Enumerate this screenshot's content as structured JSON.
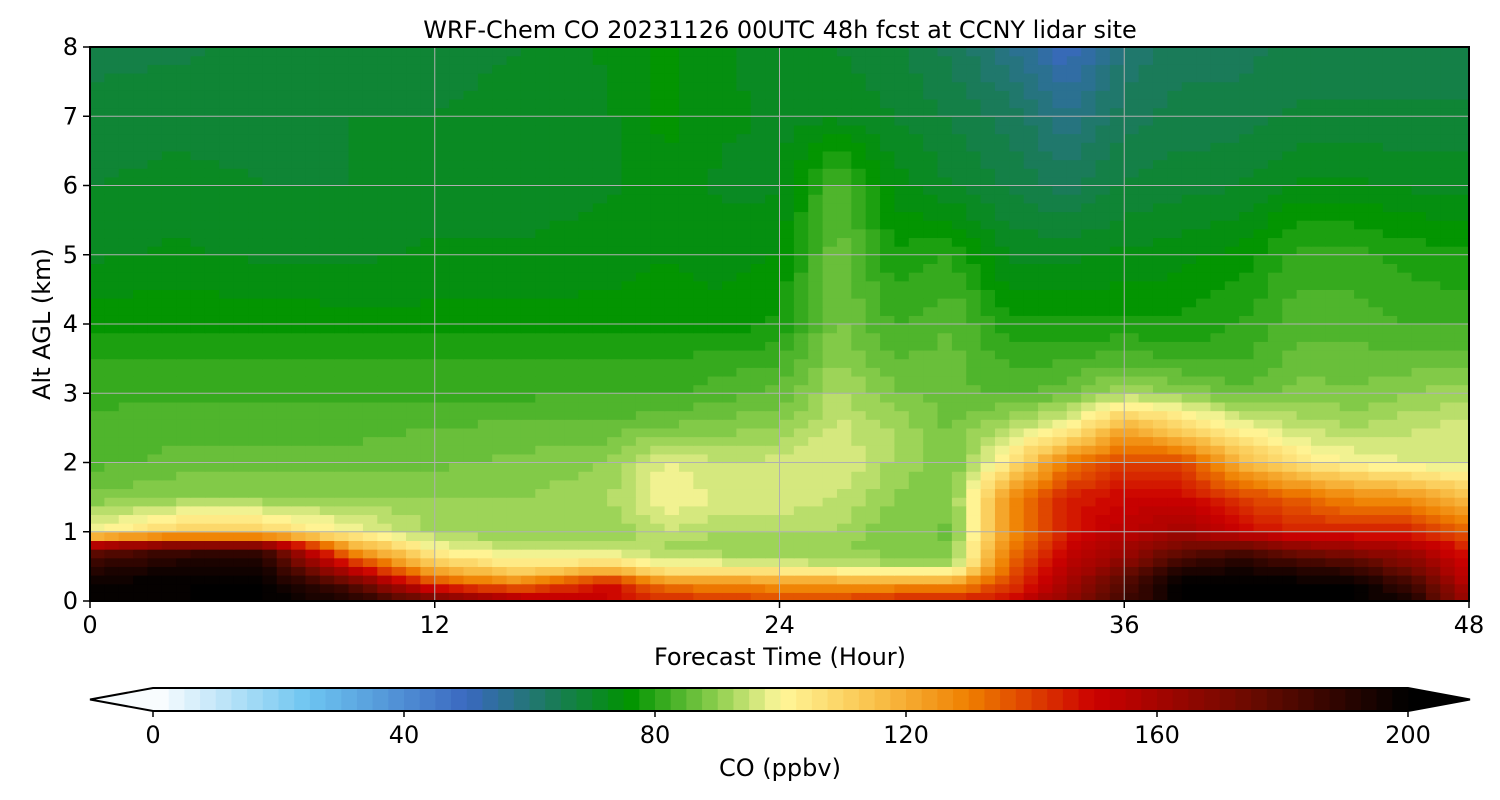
{
  "chart_data": {
    "type": "heatmap",
    "title": "WRF-Chem CO  20231126 00UTC 48h fcst at CCNY lidar site",
    "xlabel": "Forecast Time (Hour)",
    "ylabel": "Alt AGL (km)",
    "xlim": [
      0,
      48
    ],
    "ylim": [
      0,
      8
    ],
    "xticks": [
      "0",
      "12",
      "24",
      "36",
      "48"
    ],
    "yticks": [
      "0",
      "1",
      "2",
      "3",
      "4",
      "5",
      "6",
      "7",
      "8"
    ],
    "grid": true,
    "colorbar": {
      "label": "CO  (ppbv)",
      "range": [
        0,
        200
      ],
      "ticks": [
        "0",
        "40",
        "80",
        "120",
        "160",
        "200"
      ],
      "extend": "both",
      "stops": [
        {
          "v": 0,
          "c": "#ffffff"
        },
        {
          "v": 25,
          "c": "#6cc4f0"
        },
        {
          "v": 50,
          "c": "#3a68c0"
        },
        {
          "v": 65,
          "c": "#177d50"
        },
        {
          "v": 76,
          "c": "#009400"
        },
        {
          "v": 90,
          "c": "#8fcf4f"
        },
        {
          "v": 100,
          "c": "#fff79a"
        },
        {
          "v": 115,
          "c": "#f9c14a"
        },
        {
          "v": 130,
          "c": "#ef7f00"
        },
        {
          "v": 150,
          "c": "#cc0000"
        },
        {
          "v": 175,
          "c": "#6a0b00"
        },
        {
          "v": 200,
          "c": "#000000"
        }
      ]
    },
    "x_hours": [
      0,
      3,
      6,
      9,
      12,
      15,
      18,
      20,
      22,
      24,
      26,
      28,
      30,
      32,
      34,
      36,
      38,
      40,
      42,
      44,
      46,
      48
    ],
    "y_km": [
      0,
      0.25,
      0.5,
      0.75,
      1,
      1.5,
      2,
      2.5,
      3,
      3.5,
      4,
      5,
      6,
      7,
      8
    ],
    "values_ppbv": [
      [
        200,
        200,
        200,
        195,
        175,
        160,
        150,
        145,
        142,
        140,
        140,
        145,
        145,
        150,
        165,
        185,
        200,
        200,
        200,
        200,
        195,
        160
      ],
      [
        198,
        200,
        200,
        180,
        140,
        130,
        150,
        130,
        128,
        126,
        125,
        125,
        125,
        140,
        160,
        180,
        200,
        200,
        200,
        200,
        185,
        155
      ],
      [
        190,
        195,
        195,
        150,
        115,
        105,
        110,
        100,
        100,
        98,
        95,
        93,
        92,
        135,
        155,
        170,
        190,
        195,
        190,
        185,
        170,
        150
      ],
      [
        175,
        185,
        185,
        125,
        100,
        95,
        95,
        92,
        90,
        90,
        90,
        88,
        88,
        130,
        150,
        160,
        175,
        180,
        170,
        165,
        160,
        145
      ],
      [
        100,
        110,
        110,
        100,
        92,
        90,
        90,
        95,
        92,
        93,
        92,
        88,
        87,
        125,
        145,
        155,
        160,
        150,
        145,
        145,
        145,
        135
      ],
      [
        88,
        90,
        90,
        90,
        90,
        90,
        92,
        100,
        97,
        97,
        95,
        90,
        88,
        125,
        145,
        150,
        150,
        140,
        135,
        128,
        125,
        115
      ],
      [
        84,
        86,
        86,
        86,
        87,
        88,
        90,
        98,
        95,
        96,
        98,
        92,
        87,
        105,
        130,
        140,
        140,
        118,
        105,
        100,
        97,
        95
      ],
      [
        83,
        84,
        84,
        84,
        85,
        86,
        86,
        88,
        89,
        90,
        96,
        92,
        87,
        94,
        100,
        120,
        110,
        100,
        95,
        92,
        95,
        96
      ],
      [
        82,
        82,
        82,
        82,
        82,
        82,
        82,
        82,
        84,
        86,
        93,
        88,
        86,
        84,
        87,
        92,
        90,
        86,
        89,
        88,
        90,
        92
      ],
      [
        80,
        80,
        80,
        80,
        80,
        80,
        80,
        80,
        81,
        82,
        90,
        85,
        86,
        82,
        82,
        84,
        82,
        82,
        86,
        86,
        86,
        86
      ],
      [
        77,
        77,
        77,
        76,
        76,
        76,
        76,
        76,
        76,
        78,
        88,
        82,
        85,
        78,
        78,
        78,
        78,
        80,
        84,
        84,
        82,
        82
      ],
      [
        72,
        73,
        72,
        72,
        73,
        73,
        74,
        75,
        74,
        75,
        87,
        78,
        80,
        72,
        72,
        73,
        74,
        76,
        81,
        81,
        79,
        78
      ],
      [
        70,
        71,
        70,
        70,
        71,
        71,
        72,
        74,
        72,
        72,
        84,
        74,
        70,
        67,
        64,
        68,
        69,
        70,
        73,
        73,
        72,
        72
      ],
      [
        68,
        69,
        69,
        70,
        70,
        71,
        72,
        76,
        73,
        72,
        72,
        70,
        67,
        64,
        58,
        64,
        66,
        66,
        68,
        68,
        68,
        68
      ],
      [
        67,
        67,
        68,
        68,
        69,
        70,
        73,
        76,
        73,
        71,
        70,
        68,
        64,
        58,
        50,
        60,
        64,
        64,
        66,
        66,
        66,
        66
      ]
    ]
  }
}
